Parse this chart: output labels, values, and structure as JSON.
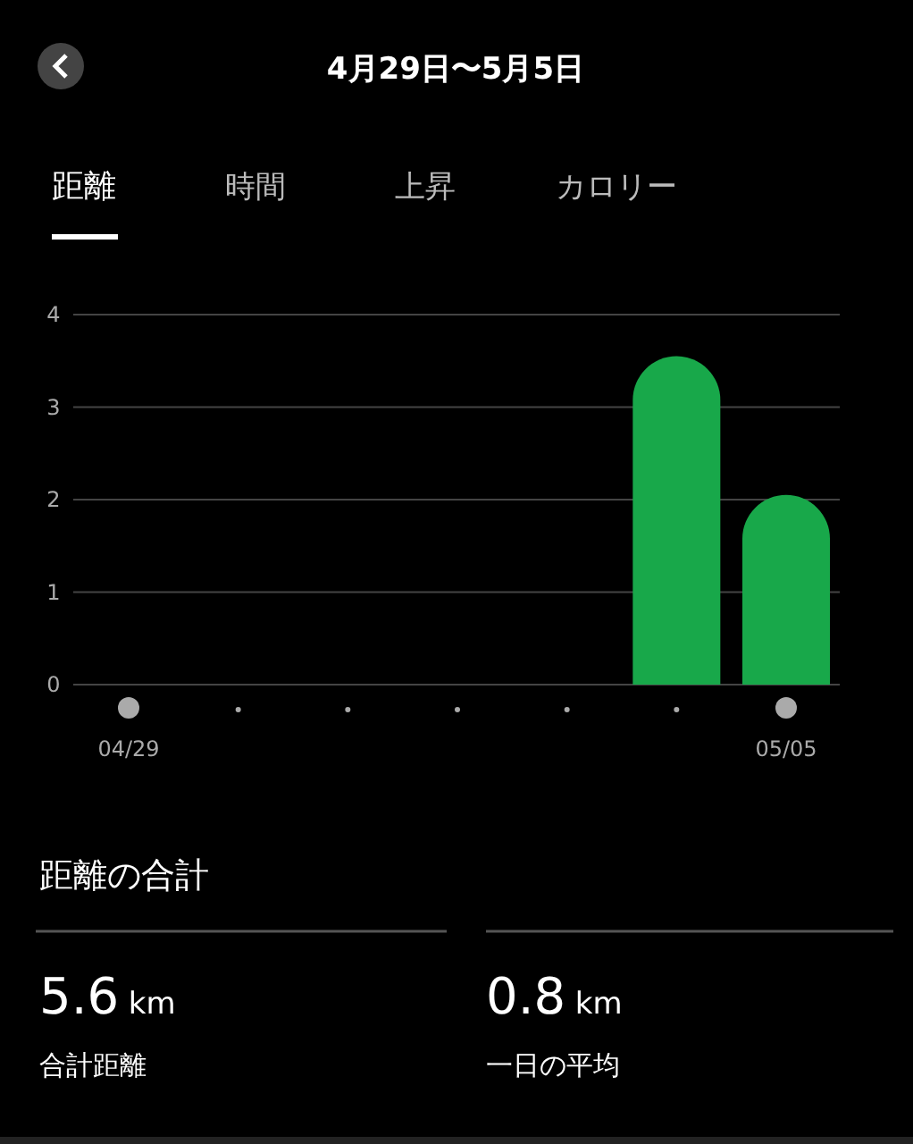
{
  "chart_data": {
    "type": "bar",
    "title": "4月29日〜5月5日",
    "categories": [
      "04/29",
      null,
      null,
      null,
      null,
      null,
      "05/05"
    ],
    "values": [
      0,
      0,
      0,
      0,
      0,
      3.55,
      2.05
    ],
    "color": "#18a84a",
    "ylim": [
      0,
      4
    ],
    "yticks": [
      0,
      1,
      2,
      3,
      4
    ],
    "grid": "y",
    "annotations": [
      "距離",
      "時間",
      "上昇",
      "カロリー",
      "距離の合計",
      "5.6 km",
      "合計距離",
      "0.8 km",
      "一日の平均"
    ]
  }
}
